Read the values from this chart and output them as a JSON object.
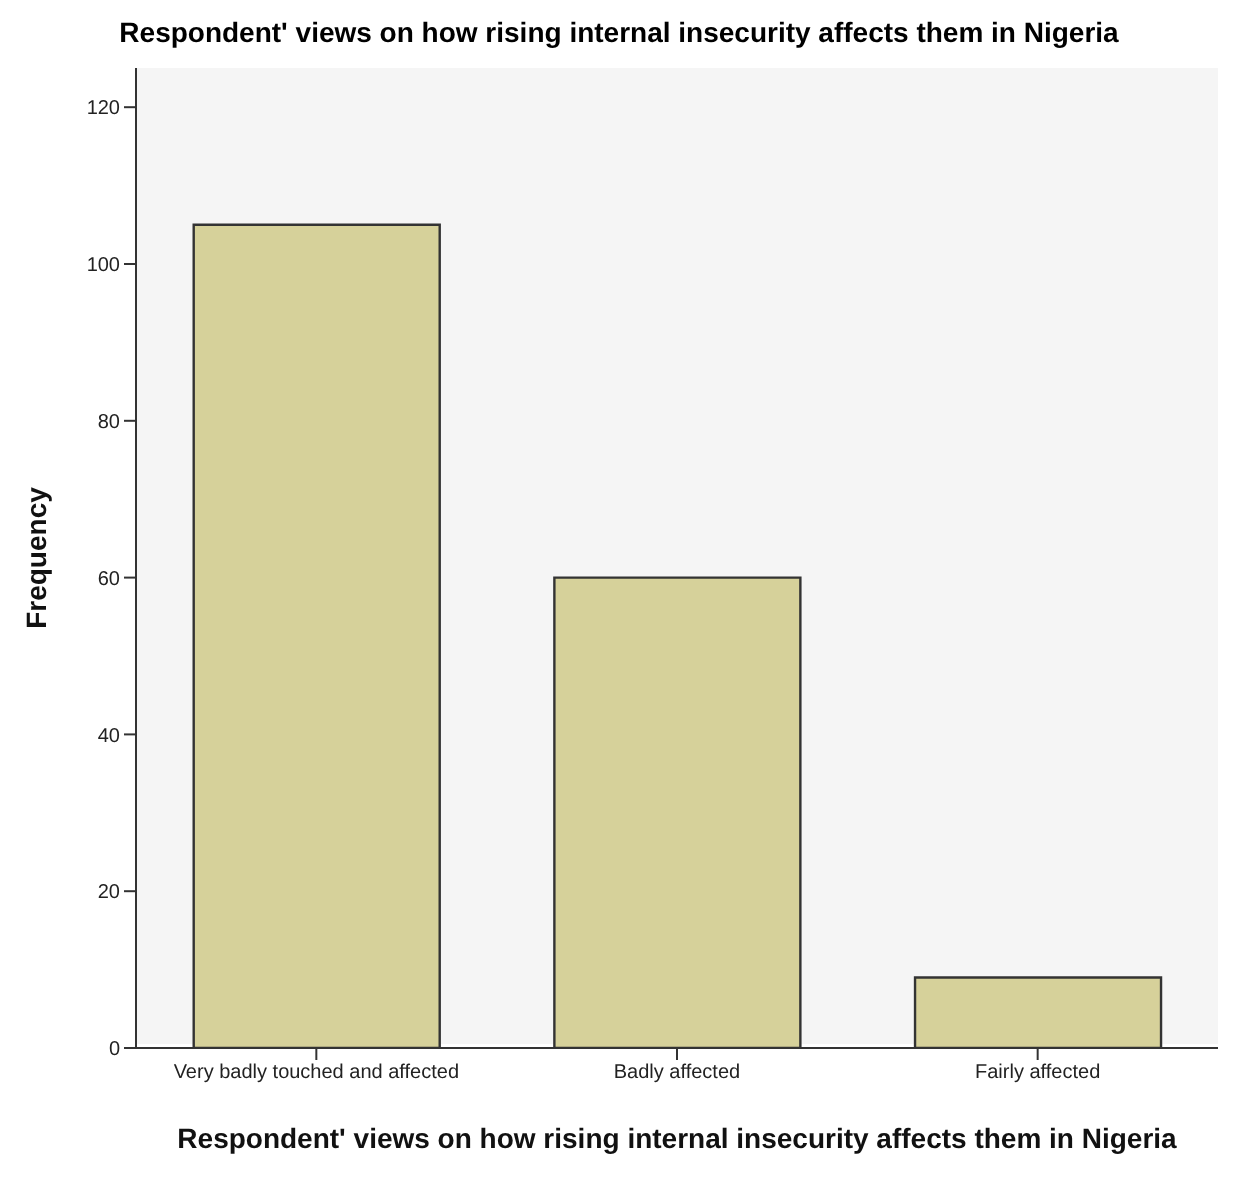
{
  "chart_data": {
    "type": "bar",
    "title": "Respondent' views on how rising internal insecurity affects them in Nigeria",
    "xlabel": "Respondent' views on how rising internal insecurity affects them in Nigeria",
    "ylabel": "Frequency",
    "categories": [
      "Very badly touched and affected",
      "Badly affected",
      "Fairly affected"
    ],
    "values": [
      105,
      60,
      9
    ],
    "color": "#d6d19a",
    "ylim": [
      0,
      125
    ],
    "yticks": [
      0,
      20,
      40,
      60,
      80,
      100,
      120
    ],
    "grid": false,
    "legend": false
  }
}
